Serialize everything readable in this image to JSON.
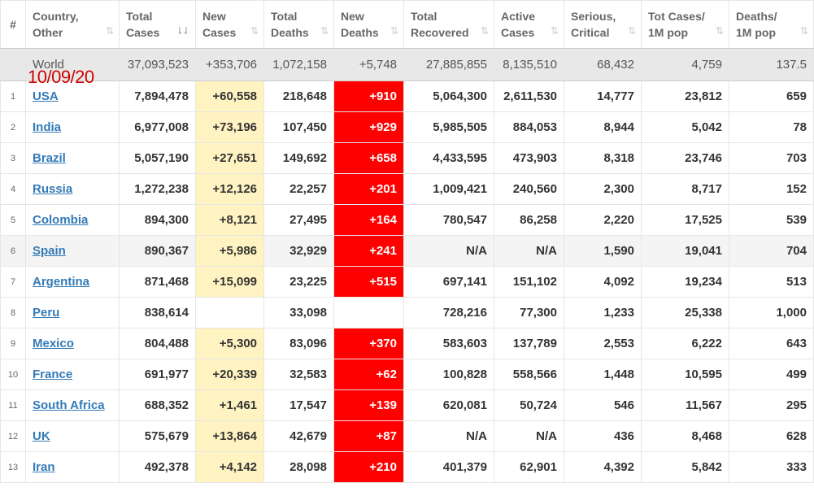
{
  "overlay_date": "10/09/20",
  "headers": [
    {
      "line1": "#",
      "line2": ""
    },
    {
      "line1": "Country,",
      "line2": "Other"
    },
    {
      "line1": "Total",
      "line2": "Cases"
    },
    {
      "line1": "New",
      "line2": "Cases"
    },
    {
      "line1": "Total",
      "line2": "Deaths"
    },
    {
      "line1": "New",
      "line2": "Deaths"
    },
    {
      "line1": "Total",
      "line2": "Recovered"
    },
    {
      "line1": "Active",
      "line2": "Cases"
    },
    {
      "line1": "Serious,",
      "line2": "Critical"
    },
    {
      "line1": "Tot Cases/",
      "line2": "1M pop"
    },
    {
      "line1": "Deaths/",
      "line2": "1M pop"
    }
  ],
  "sort_icons": {
    "default": "⇅",
    "active": "⇂⇃"
  },
  "world": {
    "country": "World",
    "total_cases": "37,093,523",
    "new_cases": "+353,706",
    "total_deaths": "1,072,158",
    "new_deaths": "+5,748",
    "total_recovered": "27,885,855",
    "active_cases": "8,135,510",
    "serious": "68,432",
    "cases_per_m": "4,759",
    "deaths_per_m": "137.5"
  },
  "rows": [
    {
      "num": "1",
      "country": "USA",
      "total_cases": "7,894,478",
      "new_cases": "+60,558",
      "total_deaths": "218,648",
      "new_deaths": "+910",
      "total_recovered": "5,064,300",
      "active_cases": "2,611,530",
      "serious": "14,777",
      "cases_per_m": "23,812",
      "deaths_per_m": "659"
    },
    {
      "num": "2",
      "country": "India",
      "total_cases": "6,977,008",
      "new_cases": "+73,196",
      "total_deaths": "107,450",
      "new_deaths": "+929",
      "total_recovered": "5,985,505",
      "active_cases": "884,053",
      "serious": "8,944",
      "cases_per_m": "5,042",
      "deaths_per_m": "78"
    },
    {
      "num": "3",
      "country": "Brazil",
      "total_cases": "5,057,190",
      "new_cases": "+27,651",
      "total_deaths": "149,692",
      "new_deaths": "+658",
      "total_recovered": "4,433,595",
      "active_cases": "473,903",
      "serious": "8,318",
      "cases_per_m": "23,746",
      "deaths_per_m": "703"
    },
    {
      "num": "4",
      "country": "Russia",
      "total_cases": "1,272,238",
      "new_cases": "+12,126",
      "total_deaths": "22,257",
      "new_deaths": "+201",
      "total_recovered": "1,009,421",
      "active_cases": "240,560",
      "serious": "2,300",
      "cases_per_m": "8,717",
      "deaths_per_m": "152"
    },
    {
      "num": "5",
      "country": "Colombia",
      "total_cases": "894,300",
      "new_cases": "+8,121",
      "total_deaths": "27,495",
      "new_deaths": "+164",
      "total_recovered": "780,547",
      "active_cases": "86,258",
      "serious": "2,220",
      "cases_per_m": "17,525",
      "deaths_per_m": "539"
    },
    {
      "num": "6",
      "country": "Spain",
      "total_cases": "890,367",
      "new_cases": "+5,986",
      "total_deaths": "32,929",
      "new_deaths": "+241",
      "total_recovered": "N/A",
      "active_cases": "N/A",
      "serious": "1,590",
      "cases_per_m": "19,041",
      "deaths_per_m": "704"
    },
    {
      "num": "7",
      "country": "Argentina",
      "total_cases": "871,468",
      "new_cases": "+15,099",
      "total_deaths": "23,225",
      "new_deaths": "+515",
      "total_recovered": "697,141",
      "active_cases": "151,102",
      "serious": "4,092",
      "cases_per_m": "19,234",
      "deaths_per_m": "513"
    },
    {
      "num": "8",
      "country": "Peru",
      "total_cases": "838,614",
      "new_cases": "",
      "total_deaths": "33,098",
      "new_deaths": "",
      "total_recovered": "728,216",
      "active_cases": "77,300",
      "serious": "1,233",
      "cases_per_m": "25,338",
      "deaths_per_m": "1,000"
    },
    {
      "num": "9",
      "country": "Mexico",
      "total_cases": "804,488",
      "new_cases": "+5,300",
      "total_deaths": "83,096",
      "new_deaths": "+370",
      "total_recovered": "583,603",
      "active_cases": "137,789",
      "serious": "2,553",
      "cases_per_m": "6,222",
      "deaths_per_m": "643"
    },
    {
      "num": "10",
      "country": "France",
      "total_cases": "691,977",
      "new_cases": "+20,339",
      "total_deaths": "32,583",
      "new_deaths": "+62",
      "total_recovered": "100,828",
      "active_cases": "558,566",
      "serious": "1,448",
      "cases_per_m": "10,595",
      "deaths_per_m": "499"
    },
    {
      "num": "11",
      "country": "South Africa",
      "total_cases": "688,352",
      "new_cases": "+1,461",
      "total_deaths": "17,547",
      "new_deaths": "+139",
      "total_recovered": "620,081",
      "active_cases": "50,724",
      "serious": "546",
      "cases_per_m": "11,567",
      "deaths_per_m": "295"
    },
    {
      "num": "12",
      "country": "UK",
      "total_cases": "575,679",
      "new_cases": "+13,864",
      "total_deaths": "42,679",
      "new_deaths": "+87",
      "total_recovered": "N/A",
      "active_cases": "N/A",
      "serious": "436",
      "cases_per_m": "8,468",
      "deaths_per_m": "628"
    },
    {
      "num": "13",
      "country": "Iran",
      "total_cases": "492,378",
      "new_cases": "+4,142",
      "total_deaths": "28,098",
      "new_deaths": "+210",
      "total_recovered": "401,379",
      "active_cases": "62,901",
      "serious": "4,392",
      "cases_per_m": "5,842",
      "deaths_per_m": "333"
    }
  ],
  "colors": {
    "new_cases_bg": "#fff3c2",
    "new_deaths_bg": "#ff0000",
    "link": "#337ab7",
    "world_row_bg": "#e8e8e8",
    "date_overlay": "#cc0000"
  }
}
